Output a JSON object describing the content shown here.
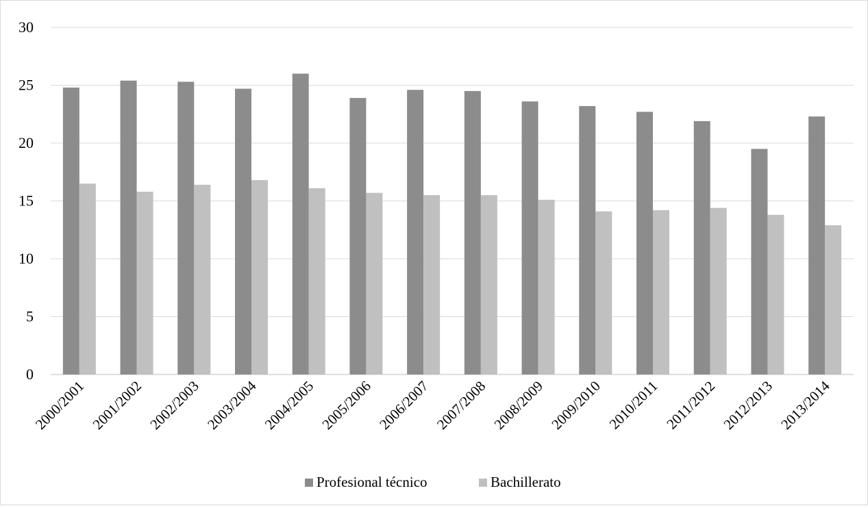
{
  "chart_data": {
    "type": "bar",
    "title": "",
    "xlabel": "",
    "ylabel": "",
    "ylim": [
      0,
      30
    ],
    "yticks": [
      "0",
      "5",
      "10",
      "15",
      "20",
      "25",
      "30"
    ],
    "grid": true,
    "legend_position": "bottom",
    "categories": [
      "2000/2001",
      "2001/2002",
      "2002/2003",
      "2003/2004",
      "2004/2005",
      "2005/2006",
      "2006/2007",
      "2007/2008",
      "2008/2009",
      "2009/2010",
      "2010/2011",
      "2011/2012",
      "2012/2013",
      "2013/2014"
    ],
    "series": [
      {
        "name": "Profesional técnico",
        "color": "#8c8c8c",
        "values": [
          24.8,
          25.4,
          25.3,
          24.7,
          26.0,
          23.9,
          24.6,
          24.5,
          23.6,
          23.2,
          22.7,
          21.9,
          19.5,
          22.3
        ]
      },
      {
        "name": "Bachillerato",
        "color": "#c0c0c0",
        "values": [
          16.5,
          15.8,
          16.4,
          16.8,
          16.1,
          15.7,
          15.5,
          15.5,
          15.1,
          14.1,
          14.2,
          14.4,
          13.8,
          12.9
        ]
      }
    ]
  }
}
